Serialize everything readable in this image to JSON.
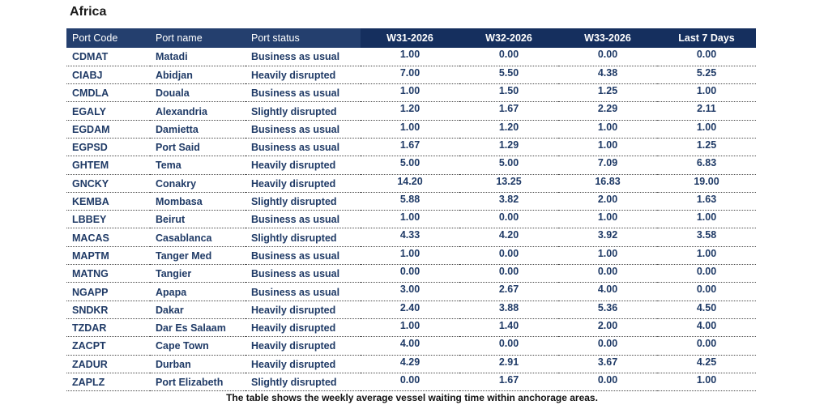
{
  "title": "Africa",
  "columns": [
    "Port Code",
    "Port name",
    "Port status",
    "W31-2026",
    "W32-2026",
    "W33-2026",
    "Last 7 Days"
  ],
  "rows": [
    {
      "code": "CDMAT",
      "name": "Matadi",
      "status": "Business as usual",
      "w31": "1.00",
      "w32": "0.00",
      "w33": "0.00",
      "last7": "0.00"
    },
    {
      "code": "CIABJ",
      "name": "Abidjan",
      "status": "Heavily disrupted",
      "w31": "7.00",
      "w32": "5.50",
      "w33": "4.38",
      "last7": "5.25"
    },
    {
      "code": "CMDLA",
      "name": "Douala",
      "status": "Business as usual",
      "w31": "1.00",
      "w32": "1.50",
      "w33": "1.25",
      "last7": "1.00"
    },
    {
      "code": "EGALY",
      "name": "Alexandria",
      "status": "Slightly disrupted",
      "w31": "1.20",
      "w32": "1.67",
      "w33": "2.29",
      "last7": "2.11"
    },
    {
      "code": "EGDAM",
      "name": "Damietta",
      "status": "Business as usual",
      "w31": "1.00",
      "w32": "1.20",
      "w33": "1.00",
      "last7": "1.00"
    },
    {
      "code": "EGPSD",
      "name": "Port Said",
      "status": "Business as usual",
      "w31": "1.67",
      "w32": "1.29",
      "w33": "1.00",
      "last7": "1.25"
    },
    {
      "code": "GHTEM",
      "name": "Tema",
      "status": "Heavily disrupted",
      "w31": "5.00",
      "w32": "5.00",
      "w33": "7.09",
      "last7": "6.83"
    },
    {
      "code": "GNCKY",
      "name": "Conakry",
      "status": "Heavily disrupted",
      "w31": "14.20",
      "w32": "13.25",
      "w33": "16.83",
      "last7": "19.00"
    },
    {
      "code": "KEMBA",
      "name": "Mombasa",
      "status": "Slightly disrupted",
      "w31": "5.88",
      "w32": "3.82",
      "w33": "2.00",
      "last7": "1.63"
    },
    {
      "code": "LBBEY",
      "name": "Beirut",
      "status": "Business as usual",
      "w31": "1.00",
      "w32": "0.00",
      "w33": "1.00",
      "last7": "1.00"
    },
    {
      "code": "MACAS",
      "name": "Casablanca",
      "status": "Slightly disrupted",
      "w31": "4.33",
      "w32": "4.20",
      "w33": "3.92",
      "last7": "3.58"
    },
    {
      "code": "MAPTM",
      "name": "Tanger Med",
      "status": "Business as usual",
      "w31": "1.00",
      "w32": "0.00",
      "w33": "1.00",
      "last7": "1.00"
    },
    {
      "code": "MATNG",
      "name": "Tangier",
      "status": "Business as usual",
      "w31": "0.00",
      "w32": "0.00",
      "w33": "0.00",
      "last7": "0.00"
    },
    {
      "code": "NGAPP",
      "name": "Apapa",
      "status": "Business as usual",
      "w31": "3.00",
      "w32": "2.67",
      "w33": "4.00",
      "last7": "0.00"
    },
    {
      "code": "SNDKR",
      "name": "Dakar",
      "status": "Heavily disrupted",
      "w31": "2.40",
      "w32": "3.88",
      "w33": "5.36",
      "last7": "4.50"
    },
    {
      "code": "TZDAR",
      "name": "Dar Es Salaam",
      "status": "Heavily disrupted",
      "w31": "1.00",
      "w32": "1.40",
      "w33": "2.00",
      "last7": "4.00"
    },
    {
      "code": "ZACPT",
      "name": "Cape Town",
      "status": "Heavily disrupted",
      "w31": "4.00",
      "w32": "0.00",
      "w33": "0.00",
      "last7": "0.00"
    },
    {
      "code": "ZADUR",
      "name": "Durban",
      "status": "Heavily disrupted",
      "w31": "4.29",
      "w32": "2.91",
      "w33": "3.67",
      "last7": "4.25"
    },
    {
      "code": "ZAPLZ",
      "name": "Port Elizabeth",
      "status": "Slightly disrupted",
      "w31": "0.00",
      "w32": "1.67",
      "w33": "0.00",
      "last7": "1.00"
    }
  ],
  "caption": "The table shows the weekly average vessel waiting time within anchorage areas."
}
